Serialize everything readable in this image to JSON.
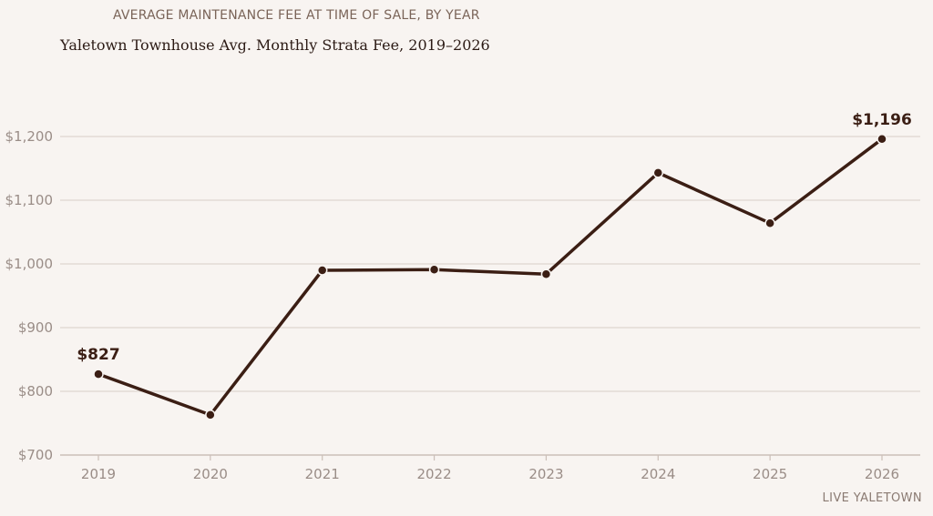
{
  "header": {
    "supertitle": "AVERAGE MAINTENANCE FEE AT TIME OF SALE, BY YEAR",
    "title": "Yaletown Townhouse Avg. Monthly Strata Fee, 2019–2026"
  },
  "footer": {
    "source": "LIVE YALETOWN"
  },
  "colors": {
    "background": "#f8f4f1",
    "line": "#3b1e14",
    "grid": "#ddd5cf",
    "axis": "#cbbfb8"
  },
  "chart_data": {
    "type": "line",
    "title": "Yaletown Townhouse Avg. Monthly Strata Fee, 2019–2026",
    "xlabel": "",
    "ylabel": "",
    "categories": [
      "2019",
      "2020",
      "2021",
      "2022",
      "2023",
      "2024",
      "2025",
      "2026"
    ],
    "series": [
      {
        "values": [
          827,
          763,
          990,
          991,
          984,
          1143,
          1064,
          1196
        ]
      }
    ],
    "ylim": [
      700,
      1200
    ],
    "yticks": [
      700,
      800,
      900,
      1000,
      1100,
      1200
    ],
    "ytick_labels": [
      "$700",
      "$800",
      "$900",
      "$1,000",
      "$1,100",
      "$1,200"
    ],
    "annotations": [
      {
        "index": 0,
        "label": "$827"
      },
      {
        "index": 7,
        "label": "$1,196"
      }
    ],
    "grid": "horizontal",
    "legend": "none"
  }
}
